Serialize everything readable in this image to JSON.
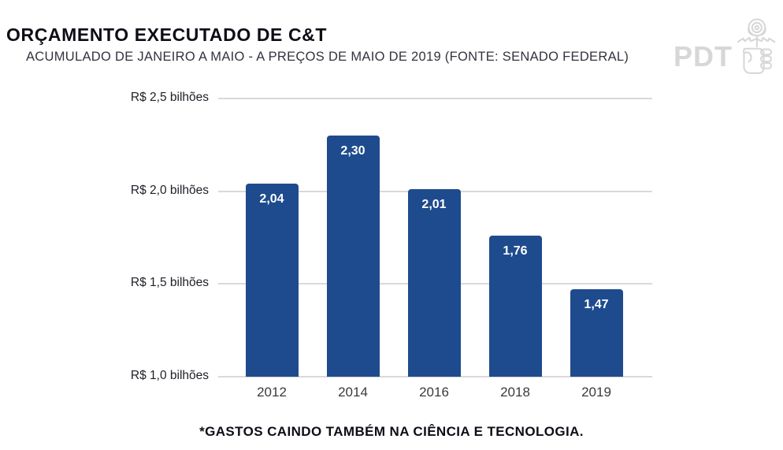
{
  "header": {
    "title": "ORÇAMENTO EXECUTADO DE C&T",
    "subtitle": "ACUMULADO DE JANEIRO A MAIO - A PREÇOS DE MAIO DE 2019 (FONTE: SENADO FEDERAL)",
    "logo_text": "PDT",
    "logo_icon": "fist-holding-rose-icon"
  },
  "chart_data": {
    "type": "bar",
    "title": "ORÇAMENTO EXECUTADO DE C&T",
    "subtitle": "ACUMULADO DE JANEIRO A MAIO - A PREÇOS DE MAIO DE 2019 (FONTE: SENADO FEDERAL)",
    "categories": [
      "2012",
      "2014",
      "2016",
      "2018",
      "2019"
    ],
    "values": [
      2.04,
      2.3,
      2.01,
      1.76,
      1.47
    ],
    "value_labels": [
      "2,04",
      "2,30",
      "2,01",
      "1,76",
      "1,47"
    ],
    "xlabel": "",
    "ylabel": "",
    "ylim": [
      1.0,
      2.5
    ],
    "yticks": [
      {
        "value": 2.5,
        "label": "R$ 2,5 bilhões"
      },
      {
        "value": 2.0,
        "label": "R$ 2,0 bilhões"
      },
      {
        "value": 1.5,
        "label": "R$ 1,5 bilhões"
      },
      {
        "value": 1.0,
        "label": "R$ 1,0 bilhões"
      }
    ],
    "grid": true,
    "legend": false,
    "bar_color": "#1e4b8d",
    "value_label_color": "#ffffff"
  },
  "footer": {
    "caption": "*GASTOS CAINDO TAMBÉM NA CIÊNCIA E TECNOLOGIA."
  },
  "colors": {
    "bar": "#1e4b8d",
    "gridline": "#d9d9d9",
    "logo": "#d7d7d7",
    "title_text": "#0d0d16",
    "subtitle_text": "#33333f"
  }
}
